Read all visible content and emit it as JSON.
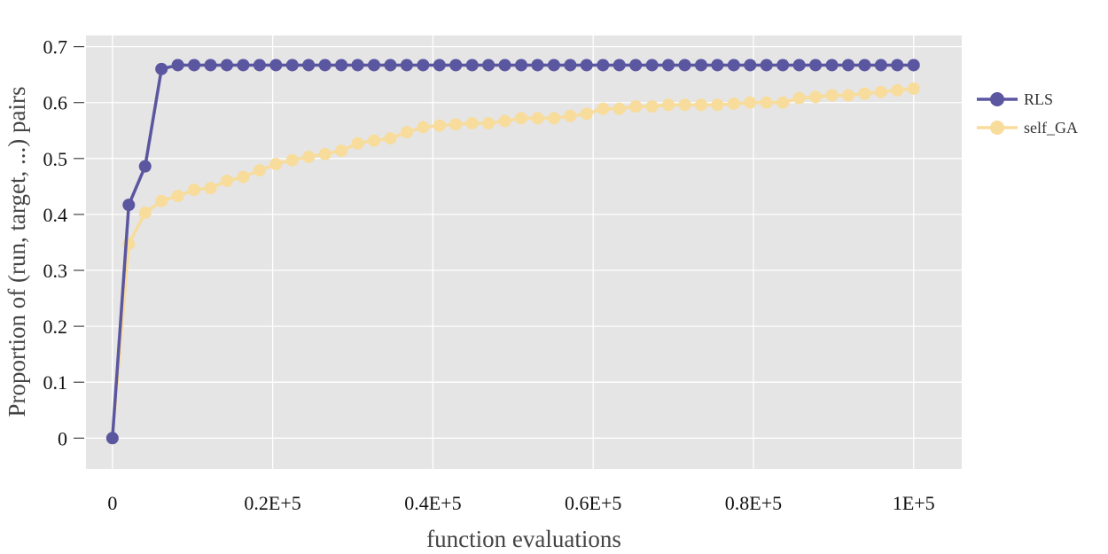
{
  "chart_data": {
    "type": "line",
    "title": "",
    "xlabel": "function evaluations",
    "ylabel": "Proportion of (run, target, ...) pairs",
    "xlim": [
      -3300,
      106000
    ],
    "ylim": [
      -0.055,
      0.72
    ],
    "x_ticks": [
      0,
      20000,
      40000,
      60000,
      80000,
      100000
    ],
    "x_tick_labels": [
      "0",
      "0.2E+5",
      "0.4E+5",
      "0.6E+5",
      "0.8E+5",
      "1E+5"
    ],
    "y_ticks": [
      0,
      0.1,
      0.2,
      0.3,
      0.4,
      0.5,
      0.6,
      0.7
    ],
    "y_tick_labels": [
      "0",
      "0.1",
      "0.2",
      "0.3",
      "0.4",
      "0.5",
      "0.6",
      "0.7"
    ],
    "grid": true,
    "legend_position": "right",
    "x": [
      0,
      2041,
      4082,
      6122,
      8163,
      10204,
      12245,
      14286,
      16327,
      18367,
      20408,
      22449,
      24490,
      26531,
      28571,
      30612,
      32653,
      34694,
      36735,
      38776,
      40816,
      42857,
      44898,
      46939,
      48980,
      51020,
      53061,
      55102,
      57143,
      59184,
      61224,
      63265,
      65306,
      67347,
      69388,
      71429,
      73469,
      75510,
      77551,
      79592,
      81633,
      83673,
      85714,
      87755,
      89796,
      91837,
      93878,
      95918,
      97959,
      100000
    ],
    "series": [
      {
        "name": "RLS",
        "color": "#5b56a0",
        "values": [
          0,
          0.417,
          0.486,
          0.66,
          0.667,
          0.667,
          0.667,
          0.667,
          0.667,
          0.667,
          0.667,
          0.667,
          0.667,
          0.667,
          0.667,
          0.667,
          0.667,
          0.667,
          0.667,
          0.667,
          0.667,
          0.667,
          0.667,
          0.667,
          0.667,
          0.667,
          0.667,
          0.667,
          0.667,
          0.667,
          0.667,
          0.667,
          0.667,
          0.667,
          0.667,
          0.667,
          0.667,
          0.667,
          0.667,
          0.667,
          0.667,
          0.667,
          0.667,
          0.667,
          0.667,
          0.667,
          0.667,
          0.667,
          0.667,
          0.667
        ]
      },
      {
        "name": "self_GA",
        "color": "#f8dc9c",
        "values": [
          0,
          0.347,
          0.403,
          0.424,
          0.433,
          0.444,
          0.447,
          0.46,
          0.467,
          0.479,
          0.49,
          0.497,
          0.503,
          0.508,
          0.514,
          0.527,
          0.532,
          0.536,
          0.547,
          0.556,
          0.559,
          0.561,
          0.563,
          0.563,
          0.567,
          0.572,
          0.572,
          0.572,
          0.576,
          0.58,
          0.589,
          0.589,
          0.593,
          0.593,
          0.596,
          0.596,
          0.596,
          0.596,
          0.598,
          0.6,
          0.6,
          0.6,
          0.608,
          0.61,
          0.613,
          0.613,
          0.616,
          0.619,
          0.622,
          0.625
        ]
      }
    ]
  }
}
